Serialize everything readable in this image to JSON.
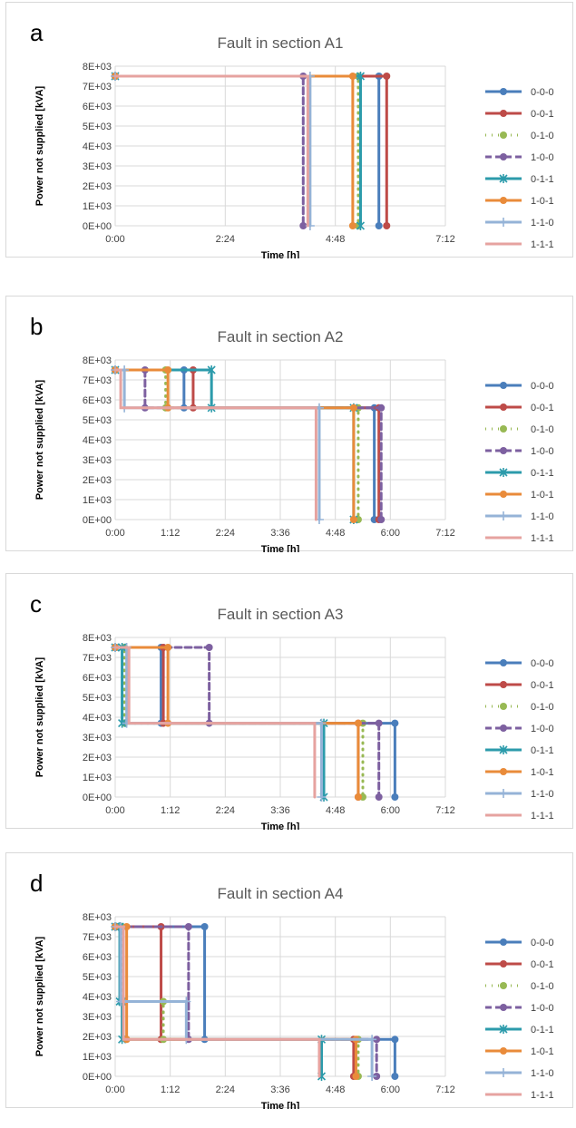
{
  "chart_data": [
    {
      "type": "line",
      "letter": "a",
      "title": "Fault in section A1",
      "xlabel": "Time [h]",
      "ylabel": "Power not supplied [kVA]",
      "xlim": [
        0,
        7.2
      ],
      "ylim": [
        0,
        8000
      ],
      "x_ticks": [
        "0:00",
        "2:24",
        "4:48",
        "7:12"
      ],
      "y_ticks": [
        "0E+00",
        "1E+03",
        "2E+03",
        "3E+03",
        "4E+03",
        "5E+03",
        "6E+03",
        "7E+03",
        "8E+03"
      ],
      "legend_position": "right",
      "series": [
        {
          "name": "0-0-0",
          "x": [
            0,
            5.75,
            5.75
          ],
          "y": [
            7500,
            7500,
            0
          ]
        },
        {
          "name": "0-0-1",
          "x": [
            0,
            5.92,
            5.92
          ],
          "y": [
            7500,
            7500,
            0
          ]
        },
        {
          "name": "0-1-0",
          "x": [
            0,
            5.3,
            5.3
          ],
          "y": [
            7500,
            7500,
            0
          ]
        },
        {
          "name": "1-0-0",
          "x": [
            0,
            4.1,
            4.1
          ],
          "y": [
            7500,
            7500,
            0
          ]
        },
        {
          "name": "0-1-1",
          "x": [
            0,
            5.35,
            5.35
          ],
          "y": [
            7500,
            7500,
            0
          ]
        },
        {
          "name": "1-0-1",
          "x": [
            0,
            5.18,
            5.18
          ],
          "y": [
            7500,
            7500,
            0
          ]
        },
        {
          "name": "1-1-0",
          "x": [
            0,
            4.25,
            4.25
          ],
          "y": [
            7500,
            7500,
            0
          ]
        },
        {
          "name": "1-1-1",
          "x": [
            0,
            4.2,
            4.2
          ],
          "y": [
            7500,
            7500,
            0
          ]
        }
      ]
    },
    {
      "type": "line",
      "letter": "b",
      "title": "Fault in section A2",
      "xlabel": "Time [h]",
      "ylabel": "Power not supplied [kVA]",
      "xlim": [
        0,
        7.2
      ],
      "ylim": [
        0,
        8000
      ],
      "x_ticks": [
        "0:00",
        "1:12",
        "2:24",
        "3:36",
        "4:48",
        "6:00",
        "7:12"
      ],
      "y_ticks": [
        "0E+00",
        "1E+03",
        "2E+03",
        "3E+03",
        "4E+03",
        "5E+03",
        "6E+03",
        "7E+03",
        "8E+03"
      ],
      "legend_position": "right",
      "series": [
        {
          "name": "0-0-0",
          "x": [
            0,
            1.5,
            1.5,
            5.65,
            5.65
          ],
          "y": [
            7500,
            7500,
            5600,
            5600,
            0
          ]
        },
        {
          "name": "0-0-1",
          "x": [
            0,
            1.7,
            1.7,
            5.75,
            5.75
          ],
          "y": [
            7500,
            7500,
            5600,
            5600,
            0
          ]
        },
        {
          "name": "0-1-0",
          "x": [
            0,
            1.1,
            1.1,
            5.3,
            5.3
          ],
          "y": [
            7500,
            7500,
            5600,
            5600,
            0
          ]
        },
        {
          "name": "1-0-0",
          "x": [
            0,
            0.65,
            0.65,
            5.8,
            5.8
          ],
          "y": [
            7500,
            7500,
            5600,
            5600,
            0
          ]
        },
        {
          "name": "0-1-1",
          "x": [
            0,
            2.1,
            2.1,
            5.2,
            5.2
          ],
          "y": [
            7500,
            7500,
            5600,
            5600,
            0
          ]
        },
        {
          "name": "1-0-1",
          "x": [
            0,
            1.15,
            1.15,
            5.2,
            5.2
          ],
          "y": [
            7500,
            7500,
            5600,
            5600,
            0
          ]
        },
        {
          "name": "1-1-0",
          "x": [
            0,
            0.2,
            0.2,
            4.45,
            4.45
          ],
          "y": [
            7500,
            7500,
            5600,
            5600,
            0
          ]
        },
        {
          "name": "1-1-1",
          "x": [
            0,
            0.12,
            0.12,
            4.38,
            4.38
          ],
          "y": [
            7500,
            7500,
            5600,
            5600,
            0
          ]
        }
      ]
    },
    {
      "type": "line",
      "letter": "c",
      "title": "Fault in section A3",
      "xlabel": "Time [h]",
      "ylabel": "Power not supplied [kVA]",
      "xlim": [
        0,
        7.2
      ],
      "ylim": [
        0,
        8000
      ],
      "x_ticks": [
        "0:00",
        "1:12",
        "2:24",
        "3:36",
        "4:48",
        "6:00",
        "7:12"
      ],
      "y_ticks": [
        "0E+00",
        "1E+03",
        "2E+03",
        "3E+03",
        "4E+03",
        "5E+03",
        "6E+03",
        "7E+03",
        "8E+03"
      ],
      "legend_position": "right",
      "series": [
        {
          "name": "0-0-0",
          "x": [
            0,
            1.0,
            1.0,
            6.1,
            6.1
          ],
          "y": [
            7500,
            7500,
            3700,
            3700,
            0
          ]
        },
        {
          "name": "0-0-1",
          "x": [
            0,
            1.05,
            1.05,
            5.3,
            5.3
          ],
          "y": [
            7500,
            7500,
            3700,
            3700,
            0
          ]
        },
        {
          "name": "0-1-0",
          "x": [
            0,
            0.2,
            0.2,
            5.4,
            5.4
          ],
          "y": [
            7500,
            7500,
            3700,
            3700,
            0
          ]
        },
        {
          "name": "1-0-0",
          "x": [
            0,
            2.05,
            2.05,
            5.75,
            5.75
          ],
          "y": [
            7500,
            7500,
            3700,
            3700,
            0
          ]
        },
        {
          "name": "0-1-1",
          "x": [
            0,
            0.15,
            0.15,
            4.55,
            4.55
          ],
          "y": [
            7500,
            7500,
            3700,
            3700,
            0
          ]
        },
        {
          "name": "1-0-1",
          "x": [
            0,
            1.15,
            1.15,
            5.3,
            5.3
          ],
          "y": [
            7500,
            7500,
            3700,
            3700,
            0
          ]
        },
        {
          "name": "1-1-0",
          "x": [
            0,
            0.25,
            0.25,
            4.5,
            4.5
          ],
          "y": [
            7500,
            7500,
            3700,
            3700,
            0
          ]
        },
        {
          "name": "1-1-1",
          "x": [
            0,
            0.3,
            0.3,
            4.35,
            4.35
          ],
          "y": [
            7500,
            7500,
            3700,
            3700,
            0
          ]
        }
      ]
    },
    {
      "type": "line",
      "letter": "d",
      "title": "Fault in section A4",
      "xlabel": "Time [h]",
      "ylabel": "Power not supplied [kVA]",
      "xlim": [
        0,
        7.2
      ],
      "ylim": [
        0,
        8000
      ],
      "x_ticks": [
        "0:00",
        "1:12",
        "2:24",
        "3:36",
        "4:48",
        "6:00",
        "7:12"
      ],
      "y_ticks": [
        "0E+00",
        "1E+03",
        "2E+03",
        "3E+03",
        "4E+03",
        "5E+03",
        "6E+03",
        "7E+03",
        "8E+03"
      ],
      "legend_position": "right",
      "series": [
        {
          "name": "0-0-0",
          "x": [
            0,
            1.95,
            1.95,
            6.1,
            6.1
          ],
          "y": [
            7500,
            7500,
            1850,
            1850,
            0
          ]
        },
        {
          "name": "0-0-1",
          "x": [
            0,
            1.0,
            1.0,
            5.2,
            5.2
          ],
          "y": [
            7500,
            7500,
            1850,
            1850,
            0
          ]
        },
        {
          "name": "0-1-0",
          "x": [
            0,
            0.15,
            0.15,
            1.05,
            1.05,
            5.3,
            5.3
          ],
          "y": [
            7500,
            7500,
            3750,
            3750,
            1850,
            1850,
            0
          ]
        },
        {
          "name": "1-0-0",
          "x": [
            0,
            1.6,
            1.6,
            5.7,
            5.7
          ],
          "y": [
            7500,
            7500,
            1850,
            1850,
            0
          ]
        },
        {
          "name": "0-1-1",
          "x": [
            0,
            0.1,
            0.1,
            0.15,
            0.15,
            4.5,
            4.5
          ],
          "y": [
            7500,
            7500,
            3750,
            3750,
            1850,
            1850,
            0
          ]
        },
        {
          "name": "1-0-1",
          "x": [
            0,
            0.25,
            0.25,
            5.25,
            5.25
          ],
          "y": [
            7500,
            7500,
            1850,
            1850,
            0
          ]
        },
        {
          "name": "1-1-0",
          "x": [
            0,
            0.12,
            0.12,
            1.55,
            1.55,
            5.6,
            5.6
          ],
          "y": [
            7500,
            7500,
            3750,
            3750,
            1850,
            1850,
            0
          ]
        },
        {
          "name": "1-1-1",
          "x": [
            0,
            0.18,
            0.18,
            4.45,
            4.45
          ],
          "y": [
            7500,
            7500,
            1850,
            1850,
            0
          ]
        }
      ]
    }
  ],
  "series_styles": [
    {
      "name": "0-0-0",
      "color": "#4a7ebb",
      "dash": "solid",
      "marker": "circle"
    },
    {
      "name": "0-0-1",
      "color": "#be4b48",
      "dash": "solid",
      "marker": "circle"
    },
    {
      "name": "0-1-0",
      "color": "#98b954",
      "dash": "dotted",
      "marker": "circle"
    },
    {
      "name": "1-0-0",
      "color": "#7d60a0",
      "dash": "dashed",
      "marker": "circle"
    },
    {
      "name": "0-1-1",
      "color": "#2c9bab",
      "dash": "solid",
      "marker": "star"
    },
    {
      "name": "1-0-1",
      "color": "#e98b3a",
      "dash": "solid",
      "marker": "circle"
    },
    {
      "name": "1-1-0",
      "color": "#95b3d7",
      "dash": "solid",
      "marker": "plus"
    },
    {
      "name": "1-1-1",
      "color": "#e6a3a0",
      "dash": "solid",
      "marker": "none"
    }
  ]
}
